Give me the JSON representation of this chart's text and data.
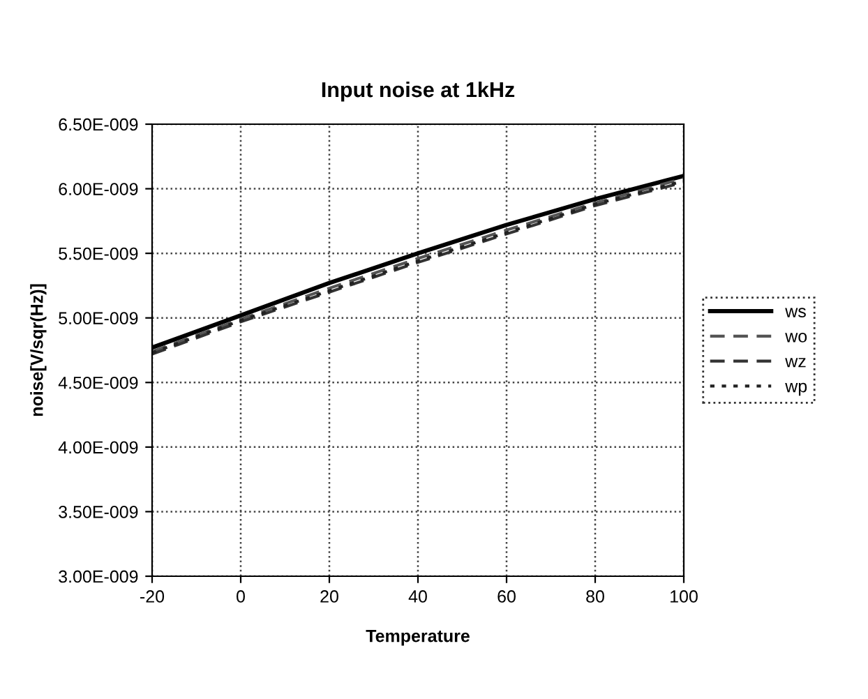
{
  "chart_data": {
    "type": "line",
    "title": "Input noise at 1kHz",
    "xlabel": "Temperature",
    "ylabel": "noise[V/sqr(Hz)]",
    "x": [
      -20,
      0,
      20,
      40,
      60,
      80,
      100
    ],
    "series": [
      {
        "name": "ws",
        "color": "#000000",
        "line_style": "solid",
        "values": [
          4.77e-09,
          5.02e-09,
          5.27e-09,
          5.5e-09,
          5.72e-09,
          5.92e-09,
          6.1e-09
        ]
      },
      {
        "name": "wo",
        "color": "#555555",
        "line_style": "dashed",
        "values": [
          4.74e-09,
          4.99e-09,
          5.23e-09,
          5.46e-09,
          5.68e-09,
          5.89e-09,
          6.08e-09
        ]
      },
      {
        "name": "wz",
        "color": "#333333",
        "line_style": "dashed",
        "values": [
          4.72e-09,
          4.97e-09,
          5.2e-09,
          5.43e-09,
          5.65e-09,
          5.87e-09,
          6.05e-09
        ]
      },
      {
        "name": "wp",
        "color": "#222222",
        "line_style": "dotted",
        "values": [
          4.73e-09,
          4.98e-09,
          5.21e-09,
          5.44e-09,
          5.66e-09,
          5.88e-09,
          6.06e-09
        ]
      }
    ],
    "xlim": [
      -20,
      100
    ],
    "xticks": [
      -20,
      0,
      20,
      40,
      60,
      80,
      100
    ],
    "ylim": [
      3e-09,
      6.5e-09
    ],
    "yticks": [
      {
        "value": 3e-09,
        "label": "3.00E-009"
      },
      {
        "value": 3.5e-09,
        "label": "3.50E-009"
      },
      {
        "value": 4e-09,
        "label": "4.00E-009"
      },
      {
        "value": 4.5e-09,
        "label": "4.50E-009"
      },
      {
        "value": 5e-09,
        "label": "5.00E-009"
      },
      {
        "value": 5.5e-09,
        "label": "5.50E-009"
      },
      {
        "value": 6e-09,
        "label": "6.00E-009"
      },
      {
        "value": 6.5e-09,
        "label": "6.50E-009"
      }
    ],
    "grid": true,
    "legend": "right",
    "marker": "none"
  }
}
